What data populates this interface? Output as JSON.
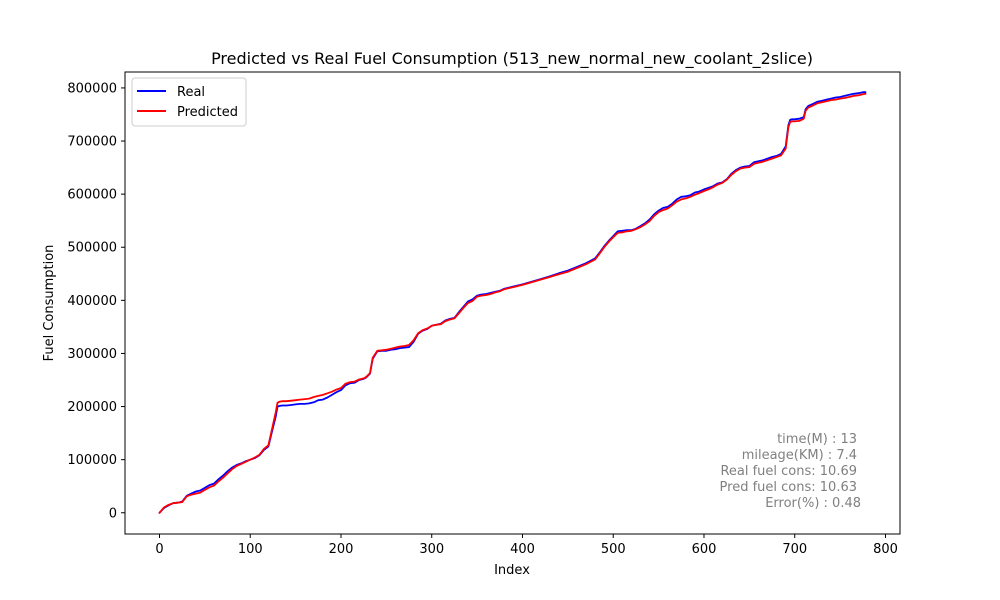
{
  "chart_data": {
    "type": "line",
    "title": "Predicted vs Real Fuel Consumption (513_new_normal_new_coolant_2slice)",
    "xlabel": "Index",
    "ylabel": "Fuel Consumption",
    "xlim": [
      -38,
      816
    ],
    "ylim": [
      -40000,
      830000
    ],
    "x_ticks": [
      0,
      100,
      200,
      300,
      400,
      500,
      600,
      700,
      800
    ],
    "y_ticks": [
      0,
      100000,
      200000,
      300000,
      400000,
      500000,
      600000,
      700000,
      800000
    ],
    "legend_position": "top-left",
    "grid": false,
    "series": [
      {
        "name": "Real",
        "color": "#0000ff",
        "x": [
          0,
          5,
          10,
          15,
          20,
          25,
          30,
          35,
          40,
          45,
          50,
          55,
          60,
          65,
          70,
          75,
          80,
          85,
          90,
          95,
          100,
          105,
          110,
          115,
          120,
          125,
          128,
          130,
          132,
          135,
          140,
          145,
          150,
          155,
          160,
          165,
          170,
          175,
          180,
          185,
          190,
          195,
          200,
          205,
          210,
          215,
          220,
          225,
          228,
          232,
          235,
          240,
          245,
          250,
          255,
          260,
          265,
          270,
          275,
          280,
          285,
          290,
          295,
          300,
          305,
          310,
          315,
          320,
          325,
          330,
          335,
          340,
          345,
          350,
          355,
          360,
          365,
          370,
          375,
          380,
          385,
          390,
          400,
          410,
          420,
          430,
          440,
          450,
          460,
          470,
          480,
          485,
          490,
          495,
          500,
          505,
          510,
          515,
          520,
          525,
          530,
          535,
          540,
          545,
          550,
          555,
          560,
          565,
          570,
          575,
          580,
          585,
          590,
          595,
          600,
          605,
          610,
          615,
          620,
          625,
          630,
          635,
          640,
          645,
          650,
          655,
          660,
          665,
          670,
          675,
          680,
          685,
          690,
          693,
          695,
          697,
          700,
          705,
          710,
          712,
          715,
          720,
          725,
          730,
          735,
          740,
          745,
          750,
          755,
          760,
          765,
          770,
          775,
          778
        ],
        "y": [
          0,
          9000,
          14000,
          18000,
          19000,
          21000,
          32000,
          36000,
          40000,
          42000,
          47000,
          52000,
          55000,
          63000,
          70000,
          78000,
          85000,
          90000,
          93000,
          97000,
          100000,
          103000,
          108000,
          118000,
          125000,
          160000,
          180000,
          200000,
          201000,
          202000,
          202000,
          203000,
          204000,
          205000,
          205000,
          206000,
          208000,
          212000,
          213000,
          217000,
          222000,
          227000,
          231000,
          240000,
          244000,
          245000,
          250000,
          252000,
          255000,
          262000,
          290000,
          304000,
          305000,
          305000,
          307000,
          308000,
          310000,
          311000,
          312000,
          322000,
          337000,
          343000,
          346000,
          352000,
          354000,
          356000,
          362000,
          365000,
          367000,
          378000,
          388000,
          398000,
          402000,
          409000,
          411000,
          412000,
          414000,
          416000,
          418000,
          422000,
          424000,
          426000,
          430000,
          435000,
          440000,
          445000,
          451000,
          456000,
          463000,
          470000,
          479000,
          490000,
          502000,
          512000,
          521000,
          530000,
          531000,
          532000,
          532000,
          535000,
          540000,
          545000,
          552000,
          562000,
          569000,
          574000,
          576000,
          582000,
          590000,
          595000,
          596000,
          598000,
          603000,
          605000,
          609000,
          612000,
          615000,
          620000,
          622000,
          628000,
          638000,
          645000,
          650000,
          652000,
          653000,
          660000,
          662000,
          664000,
          667000,
          670000,
          672000,
          676000,
          690000,
          730000,
          740000,
          741000,
          741000,
          742000,
          745000,
          760000,
          766000,
          770000,
          774000,
          776000,
          778000,
          780000,
          782000,
          783000,
          785000,
          787000,
          789000,
          790000,
          792000,
          792000
        ]
      },
      {
        "name": "Predicted",
        "color": "#ff0000",
        "x": [
          0,
          5,
          10,
          15,
          20,
          25,
          30,
          35,
          40,
          45,
          50,
          55,
          60,
          65,
          70,
          75,
          80,
          85,
          90,
          95,
          100,
          105,
          110,
          115,
          120,
          125,
          128,
          130,
          132,
          135,
          140,
          145,
          150,
          155,
          160,
          165,
          170,
          175,
          180,
          185,
          190,
          195,
          200,
          205,
          210,
          215,
          220,
          225,
          228,
          232,
          235,
          240,
          245,
          250,
          255,
          260,
          265,
          270,
          275,
          280,
          285,
          290,
          295,
          300,
          305,
          310,
          315,
          320,
          325,
          330,
          335,
          340,
          345,
          350,
          355,
          360,
          365,
          370,
          375,
          380,
          385,
          390,
          400,
          410,
          420,
          430,
          440,
          450,
          460,
          470,
          480,
          485,
          490,
          495,
          500,
          505,
          510,
          515,
          520,
          525,
          530,
          535,
          540,
          545,
          550,
          555,
          560,
          565,
          570,
          575,
          580,
          585,
          590,
          595,
          600,
          605,
          610,
          615,
          620,
          625,
          630,
          635,
          640,
          645,
          650,
          655,
          660,
          665,
          670,
          675,
          680,
          685,
          690,
          693,
          695,
          697,
          700,
          705,
          710,
          712,
          715,
          720,
          725,
          730,
          735,
          740,
          745,
          750,
          755,
          760,
          765,
          770,
          775,
          778
        ],
        "y": [
          0,
          10000,
          15000,
          18000,
          19000,
          20000,
          31000,
          34000,
          36000,
          38000,
          43000,
          48000,
          51000,
          59000,
          66000,
          74000,
          82000,
          88000,
          92000,
          96000,
          100000,
          104000,
          109000,
          120000,
          127000,
          165000,
          188000,
          207000,
          209000,
          210000,
          210000,
          211000,
          212000,
          213000,
          214000,
          215000,
          218000,
          220000,
          222000,
          225000,
          228000,
          232000,
          235000,
          243000,
          246000,
          247000,
          251000,
          253000,
          256000,
          263000,
          292000,
          305000,
          306000,
          307000,
          309000,
          311000,
          313000,
          314000,
          316000,
          325000,
          338000,
          344000,
          347000,
          352000,
          354000,
          355000,
          361000,
          364000,
          366000,
          376000,
          386000,
          395000,
          399000,
          407000,
          409000,
          410000,
          412000,
          415000,
          417000,
          421000,
          423000,
          425000,
          429000,
          434000,
          439000,
          444000,
          449000,
          454000,
          461000,
          468000,
          477000,
          488000,
          500000,
          510000,
          519000,
          527000,
          528000,
          530000,
          531000,
          534000,
          538000,
          543000,
          549000,
          559000,
          566000,
          570000,
          573000,
          579000,
          586000,
          590000,
          592000,
          595000,
          599000,
          602000,
          606000,
          609000,
          613000,
          618000,
          621000,
          627000,
          636000,
          643000,
          648000,
          650000,
          651000,
          657000,
          659000,
          661000,
          664000,
          667000,
          670000,
          673000,
          686000,
          726000,
          736000,
          737000,
          737000,
          738000,
          742000,
          757000,
          763000,
          767000,
          771000,
          773000,
          775000,
          777000,
          778000,
          780000,
          781000,
          783000,
          785000,
          786000,
          788000,
          789000
        ]
      }
    ],
    "annotations": [
      "time(M) : 13",
      "mileage(KM) : 7.4",
      "Real fuel cons: 10.69",
      "Pred fuel cons: 10.63",
      "Error(%) : 0.48"
    ],
    "annotation_color": "#808080"
  }
}
